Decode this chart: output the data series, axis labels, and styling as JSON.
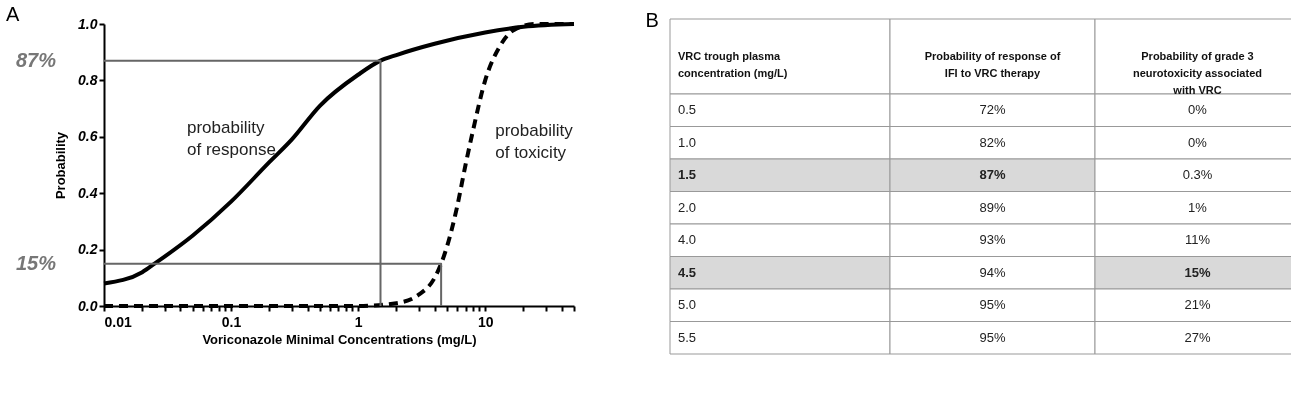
{
  "chart_data": [
    {
      "type": "line",
      "title": "A",
      "xlabel": "Voriconazole Minimal Concentrations (mg/L)",
      "ylabel": "Probability",
      "log": "x",
      "grid": false,
      "marker": "none",
      "xlim": [
        0.01,
        50
      ],
      "xticks": [
        0.01,
        {
          "value": 0.02,
          "label": null
        },
        {
          "value": 0.03,
          "label": null
        },
        {
          "value": 0.04,
          "label": null
        },
        {
          "value": 0.05,
          "label": null
        },
        {
          "value": 0.06,
          "label": null
        },
        {
          "value": 0.07,
          "label": null
        },
        {
          "value": 0.08,
          "label": null
        },
        {
          "value": 0.09,
          "label": null
        },
        0.1,
        {
          "value": 0.2,
          "label": null
        },
        {
          "value": 0.3,
          "label": null
        },
        {
          "value": 0.4,
          "label": null
        },
        {
          "value": 0.5,
          "label": null
        },
        {
          "value": 0.6,
          "label": null
        },
        {
          "value": 0.7,
          "label": null
        },
        {
          "value": 0.8,
          "label": null
        },
        {
          "value": 0.9,
          "label": null
        },
        1,
        {
          "value": 2,
          "label": null
        },
        {
          "value": 3,
          "label": null
        },
        {
          "value": 4,
          "label": null
        },
        {
          "value": 5,
          "label": null
        },
        {
          "value": 6,
          "label": null
        },
        {
          "value": 7,
          "label": null
        },
        {
          "value": 8,
          "label": null
        },
        {
          "value": 9,
          "label": null
        },
        10,
        {
          "value": 20,
          "label": null
        },
        {
          "value": 30,
          "label": null
        },
        {
          "value": 40,
          "label": null
        },
        {
          "value": 50,
          "label": null
        }
      ],
      "ylim": [
        0,
        1
      ],
      "yticks": [
        {
          "value": 0,
          "label": "0.0"
        },
        0.2,
        0.4,
        0.6,
        0.8,
        {
          "value": 1,
          "label": "1.0"
        }
      ],
      "series": [
        {
          "color": "#000000",
          "line_style": "solid",
          "x": [
            0.01,
            0.02,
            0.025,
            0.05,
            0.1,
            0.2,
            0.3,
            0.5,
            1,
            1.5,
            2,
            4,
            10,
            20,
            50
          ],
          "values": [
            0.08,
            0.12,
            0.15,
            0.25,
            0.37,
            0.51,
            0.59,
            0.71,
            0.82,
            0.87,
            0.89,
            0.93,
            0.97,
            0.99,
            1.0
          ]
        },
        {
          "color": "#000000",
          "line_style": "dashed",
          "x": [
            0.01,
            1,
            2,
            3,
            4,
            4.5,
            5,
            6,
            7,
            8,
            10,
            13,
            17,
            25,
            50
          ],
          "values": [
            0,
            0,
            0.01,
            0.04,
            0.1,
            0.15,
            0.21,
            0.35,
            0.5,
            0.62,
            0.8,
            0.92,
            0.98,
            1.0,
            1.0
          ]
        },
        {
          "color": "#666666",
          "line_style": "solid",
          "x": [
            0.01,
            1.5,
            1.5
          ],
          "values": [
            0.87,
            0.87,
            0
          ]
        },
        {
          "color": "#666666",
          "line_style": "solid",
          "x": [
            0.01,
            4.5,
            4.5
          ],
          "values": [
            0.15,
            0.15,
            0
          ]
        }
      ],
      "annotations": [
        {
          "text": "87%",
          "x": 0.01,
          "y": 0.87
        },
        {
          "text": "15%",
          "x": 0.01,
          "y": 0.15
        },
        "probability\nof response",
        "probability\nof toxicity"
      ]
    },
    {
      "type": "other",
      "title": "B",
      "categories": [
        "VRC trough plasma concentration (mg/L)",
        "Probability of response of IFI to VRC therapy",
        "Probability of grade 3 neurotoxicity associated with VRC"
      ],
      "y_categories": [
        "0.5",
        "1.0",
        "1.5",
        "2.0",
        "4.0",
        "4.5",
        "5.0",
        "5.5"
      ],
      "cell_labels": [
        [
          "72%",
          "0%"
        ],
        [
          "82%",
          "0%"
        ],
        [
          "87%",
          "0.3%"
        ],
        [
          "89%",
          "1%"
        ],
        [
          "93%",
          "11%"
        ],
        [
          "94%",
          "15%"
        ],
        [
          "95%",
          "21%"
        ],
        [
          "95%",
          "27%"
        ]
      ],
      "colors": [
        [
          null,
          null,
          null
        ],
        [
          null,
          null,
          null
        ],
        [
          "#d9d9d9",
          "#d9d9d9",
          null
        ],
        [
          null,
          null,
          null
        ],
        [
          null,
          null,
          null
        ],
        [
          "#d9d9d9",
          null,
          "#d9d9d9"
        ],
        [
          null,
          null,
          null
        ],
        [
          null,
          null,
          null
        ]
      ]
    }
  ]
}
